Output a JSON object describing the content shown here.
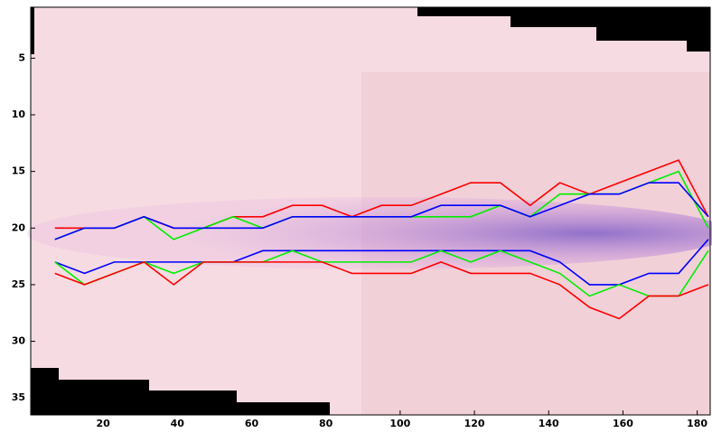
{
  "chart_data": {
    "type": "line",
    "x": [
      7,
      15,
      23,
      31,
      39,
      47,
      55,
      63,
      71,
      79,
      87,
      95,
      103,
      111,
      119,
      127,
      135,
      143,
      151,
      159,
      167,
      175,
      183
    ],
    "series": [
      {
        "color": "#ff0000",
        "values": [
          20,
          20,
          20,
          19,
          20,
          20,
          19,
          19,
          18,
          18,
          19,
          18,
          18,
          17,
          16,
          16,
          18,
          16,
          17,
          16,
          15,
          14,
          19
        ]
      },
      {
        "color": "#00ee00",
        "values": [
          21,
          20,
          20,
          19,
          21,
          20,
          19,
          20,
          19,
          19,
          19,
          19,
          19,
          19,
          19,
          18,
          19,
          17,
          17,
          17,
          16,
          15,
          20
        ]
      },
      {
        "color": "#0000ff",
        "values": [
          21,
          20,
          20,
          19,
          20,
          20,
          20,
          20,
          19,
          19,
          19,
          19,
          19,
          18,
          18,
          18,
          19,
          18,
          17,
          17,
          16,
          16,
          19
        ]
      },
      {
        "color": "#0000ff",
        "values": [
          23,
          24,
          23,
          23,
          23,
          23,
          23,
          22,
          22,
          22,
          22,
          22,
          22,
          22,
          22,
          22,
          22,
          23,
          25,
          25,
          24,
          24,
          21
        ]
      },
      {
        "color": "#00ee00",
        "values": [
          23,
          25,
          24,
          23,
          24,
          23,
          23,
          23,
          22,
          23,
          23,
          23,
          23,
          22,
          23,
          22,
          23,
          24,
          26,
          25,
          26,
          26,
          22
        ]
      },
      {
        "color": "#ff0000",
        "values": [
          24,
          25,
          24,
          23,
          25,
          23,
          23,
          23,
          23,
          23,
          24,
          24,
          24,
          23,
          24,
          24,
          24,
          25,
          27,
          28,
          26,
          26,
          25
        ]
      }
    ],
    "xlim": [
      0.5,
      183.5
    ],
    "xticks": [
      20,
      40,
      60,
      80,
      100,
      120,
      140,
      160,
      180
    ],
    "ylim": [
      0.5,
      36.5
    ],
    "yticks": [
      5,
      10,
      15,
      20,
      25,
      30,
      35
    ],
    "y_reversed": true
  }
}
